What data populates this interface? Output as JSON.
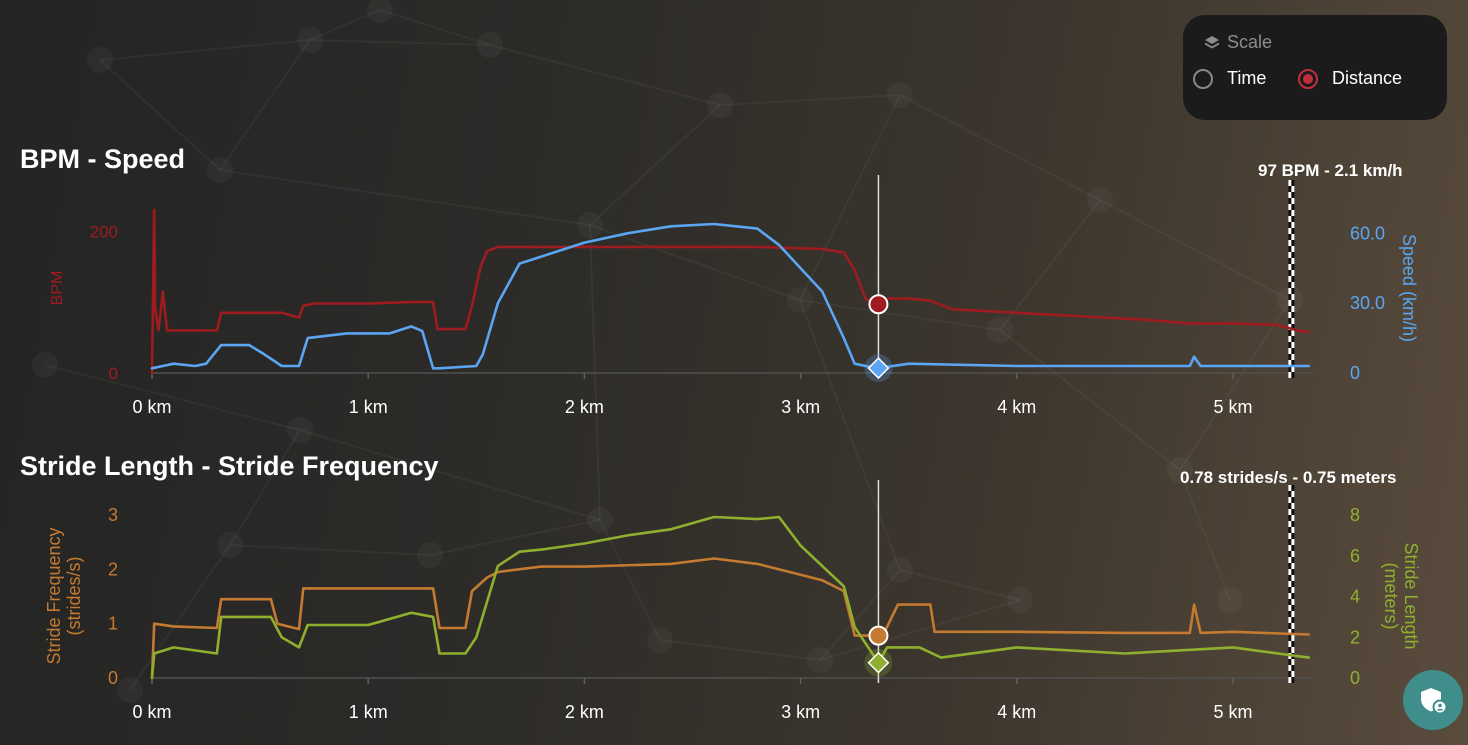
{
  "scale": {
    "label": "Scale",
    "options": [
      {
        "label": "Time",
        "selected": false
      },
      {
        "label": "Distance",
        "selected": true
      }
    ],
    "accent": "#c0303a"
  },
  "colors": {
    "bpm": "#9e1c1f",
    "speed": "#5ba6f2",
    "freq": "#c47a30",
    "length": "#8fb02e",
    "privacy": "#3f8e8c"
  },
  "chart_data": [
    {
      "type": "line",
      "title": "BPM - Speed",
      "readout": "97 BPM - 2.1 km/h",
      "cursor_x": 3.36,
      "finish_x": 5.27,
      "xlim": [
        0,
        5.37
      ],
      "x_ticks": [
        0,
        1,
        2,
        3,
        4,
        5
      ],
      "x_tick_labels": [
        "0 km",
        "1 km",
        "2 km",
        "3 km",
        "4 km",
        "5 km"
      ],
      "y_left": {
        "label": "BPM",
        "lim": [
          0,
          230
        ],
        "ticks": [
          0,
          200
        ],
        "tick_labels": [
          "0",
          "200"
        ]
      },
      "y_right": {
        "label": "Speed (km/h)",
        "lim": [
          0,
          70
        ],
        "ticks": [
          0,
          30,
          60
        ],
        "tick_labels": [
          "0",
          "30.0",
          "60.0"
        ]
      },
      "series": [
        {
          "name": "BPM",
          "axis": "left",
          "color": "#9e1c1f",
          "x": [
            0.0,
            0.01,
            0.015,
            0.03,
            0.05,
            0.07,
            0.1,
            0.2,
            0.3,
            0.32,
            0.5,
            0.6,
            0.68,
            0.7,
            0.75,
            1.0,
            1.2,
            1.3,
            1.32,
            1.45,
            1.48,
            1.52,
            1.55,
            1.6,
            2.0,
            2.4,
            2.8,
            3.1,
            3.2,
            3.25,
            3.3,
            3.36,
            3.4,
            3.5,
            3.6,
            3.7,
            4.0,
            4.3,
            4.6,
            4.8,
            5.0,
            5.2,
            5.3,
            5.35
          ],
          "y": [
            0,
            230,
            90,
            60,
            115,
            60,
            60,
            60,
            60,
            85,
            85,
            85,
            78,
            95,
            98,
            98,
            100,
            100,
            62,
            62,
            95,
            150,
            172,
            178,
            178,
            178,
            178,
            175,
            170,
            145,
            105,
            97,
            105,
            105,
            102,
            90,
            85,
            80,
            75,
            70,
            70,
            68,
            60,
            58
          ]
        },
        {
          "name": "Speed (km/h)",
          "axis": "right",
          "color": "#5ba6f2",
          "x": [
            0.0,
            0.05,
            0.1,
            0.2,
            0.25,
            0.32,
            0.45,
            0.52,
            0.6,
            0.68,
            0.72,
            0.9,
            1.1,
            1.2,
            1.25,
            1.3,
            1.33,
            1.5,
            1.53,
            1.6,
            1.7,
            1.8,
            2.0,
            2.2,
            2.4,
            2.6,
            2.8,
            2.9,
            3.0,
            3.1,
            3.2,
            3.25,
            3.3,
            3.36,
            3.5,
            4.0,
            4.5,
            4.8,
            4.82,
            4.85,
            5.0,
            5.2,
            5.35
          ],
          "y": [
            2,
            3,
            4,
            3,
            4,
            12,
            12,
            8,
            3,
            3,
            15,
            17,
            17,
            20,
            18,
            2,
            2,
            3,
            8,
            30,
            47,
            50,
            56,
            60,
            63,
            64,
            62,
            55,
            45,
            35,
            15,
            4,
            3,
            2.1,
            4,
            3,
            3,
            3,
            7,
            3,
            3,
            3,
            3
          ]
        }
      ]
    },
    {
      "type": "line",
      "title": "Stride Length - Stride Frequency",
      "readout": "0.78 strides/s - 0.75 meters",
      "cursor_x": 3.36,
      "finish_x": 5.27,
      "xlim": [
        0,
        5.37
      ],
      "x_ticks": [
        0,
        1,
        2,
        3,
        4,
        5
      ],
      "x_tick_labels": [
        "0 km",
        "1 km",
        "2 km",
        "3 km",
        "4 km",
        "5 km"
      ],
      "y_left": {
        "label": "Stride Frequency (strides/s)",
        "lim": [
          0,
          3
        ],
        "ticks": [
          0,
          1,
          2,
          3
        ],
        "tick_labels": [
          "0",
          "1",
          "2",
          "3"
        ]
      },
      "y_right": {
        "label": "Stride Length (meters)",
        "lim": [
          0,
          8
        ],
        "ticks": [
          0,
          2,
          4,
          6,
          8
        ],
        "tick_labels": [
          "0",
          "2",
          "4",
          "6",
          "8"
        ]
      },
      "series": [
        {
          "name": "Stride Frequency (strides/s)",
          "axis": "left",
          "color": "#c47a30",
          "x": [
            0.0,
            0.01,
            0.1,
            0.3,
            0.32,
            0.55,
            0.58,
            0.68,
            0.7,
            0.75,
            1.0,
            1.3,
            1.33,
            1.45,
            1.48,
            1.55,
            1.6,
            1.8,
            2.0,
            2.4,
            2.6,
            2.8,
            3.0,
            3.1,
            3.2,
            3.25,
            3.36,
            3.38,
            3.45,
            3.6,
            3.62,
            4.0,
            4.5,
            4.8,
            4.82,
            4.85,
            5.0,
            5.35
          ],
          "y": [
            0,
            1.0,
            0.95,
            0.92,
            1.45,
            1.45,
            1.0,
            0.9,
            1.65,
            1.65,
            1.65,
            1.65,
            0.92,
            0.92,
            1.6,
            1.85,
            1.95,
            2.05,
            2.05,
            2.1,
            2.2,
            2.1,
            1.9,
            1.8,
            1.6,
            0.78,
            0.78,
            0.78,
            1.35,
            1.35,
            0.85,
            0.85,
            0.83,
            0.83,
            1.35,
            0.83,
            0.85,
            0.8
          ]
        },
        {
          "name": "Stride Length (meters)",
          "axis": "right",
          "color": "#8fb02e",
          "x": [
            0.0,
            0.01,
            0.1,
            0.3,
            0.32,
            0.55,
            0.6,
            0.68,
            0.72,
            1.0,
            1.2,
            1.3,
            1.33,
            1.45,
            1.5,
            1.6,
            1.7,
            1.8,
            2.0,
            2.2,
            2.4,
            2.6,
            2.8,
            2.9,
            3.0,
            3.1,
            3.2,
            3.25,
            3.36,
            3.4,
            3.55,
            3.65,
            4.0,
            4.5,
            5.0,
            5.35
          ],
          "y": [
            0,
            1.2,
            1.5,
            1.2,
            3.0,
            3.0,
            2.0,
            1.5,
            2.6,
            2.6,
            3.2,
            3.0,
            1.2,
            1.2,
            2.0,
            5.5,
            6.2,
            6.3,
            6.6,
            7.0,
            7.3,
            7.9,
            7.8,
            7.9,
            6.5,
            5.5,
            4.5,
            2.5,
            0.75,
            1.5,
            1.5,
            1.0,
            1.5,
            1.2,
            1.5,
            1.0
          ]
        }
      ]
    }
  ]
}
